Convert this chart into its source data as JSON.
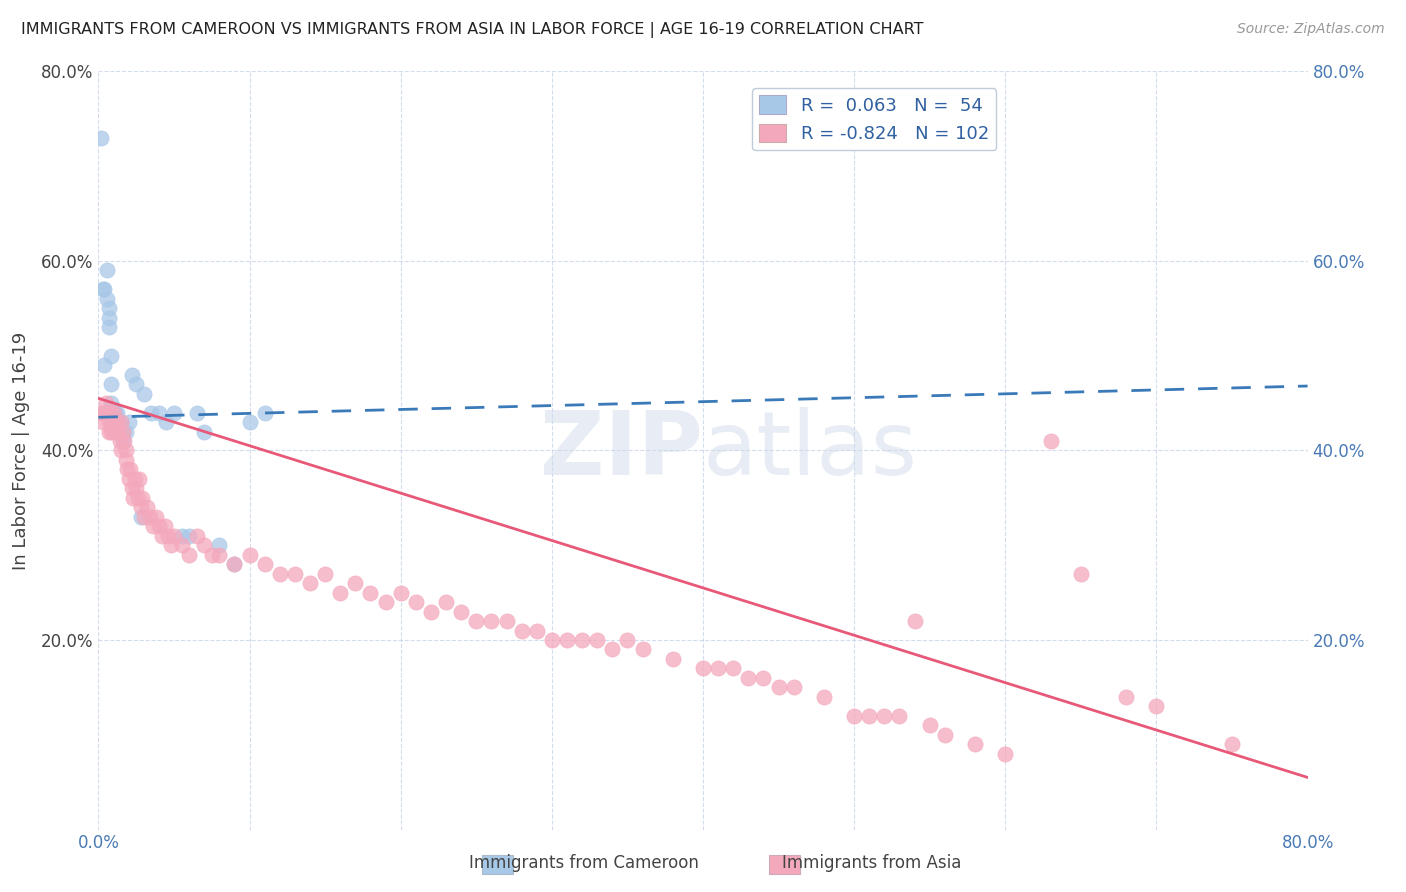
{
  "title": "IMMIGRANTS FROM CAMEROON VS IMMIGRANTS FROM ASIA IN LABOR FORCE | AGE 16-19 CORRELATION CHART",
  "source": "Source: ZipAtlas.com",
  "ylabel": "In Labor Force | Age 16-19",
  "xlim": [
    0.0,
    0.8
  ],
  "ylim": [
    0.0,
    0.8
  ],
  "cameroon_R": 0.063,
  "cameroon_N": 54,
  "asia_R": -0.824,
  "asia_N": 102,
  "cameroon_color": "#a8c8e8",
  "asia_color": "#f4a8bc",
  "cameroon_line_color": "#3a7ab8",
  "asia_line_color": "#e85878",
  "watermark": "ZIPatlas",
  "cam_line_start_y": 0.435,
  "cam_line_end_y": 0.468,
  "asia_line_start_y": 0.455,
  "asia_line_end_y": 0.055,
  "cam_scatter_x": [
    0.002,
    0.003,
    0.004,
    0.004,
    0.005,
    0.005,
    0.005,
    0.006,
    0.006,
    0.007,
    0.007,
    0.007,
    0.008,
    0.008,
    0.008,
    0.008,
    0.009,
    0.009,
    0.009,
    0.01,
    0.01,
    0.01,
    0.01,
    0.011,
    0.011,
    0.011,
    0.012,
    0.012,
    0.013,
    0.013,
    0.014,
    0.014,
    0.015,
    0.015,
    0.016,
    0.016,
    0.018,
    0.02,
    0.022,
    0.025,
    0.028,
    0.03,
    0.035,
    0.04,
    0.045,
    0.05,
    0.055,
    0.06,
    0.065,
    0.07,
    0.08,
    0.09,
    0.1,
    0.11
  ],
  "cam_scatter_y": [
    0.73,
    0.57,
    0.57,
    0.49,
    0.44,
    0.44,
    0.44,
    0.59,
    0.56,
    0.55,
    0.54,
    0.53,
    0.5,
    0.47,
    0.45,
    0.44,
    0.44,
    0.44,
    0.43,
    0.44,
    0.44,
    0.43,
    0.43,
    0.44,
    0.43,
    0.42,
    0.44,
    0.43,
    0.43,
    0.42,
    0.43,
    0.42,
    0.43,
    0.42,
    0.42,
    0.41,
    0.42,
    0.43,
    0.48,
    0.47,
    0.33,
    0.46,
    0.44,
    0.44,
    0.43,
    0.44,
    0.31,
    0.31,
    0.44,
    0.42,
    0.3,
    0.28,
    0.43,
    0.44
  ],
  "asia_scatter_x": [
    0.002,
    0.003,
    0.004,
    0.005,
    0.006,
    0.007,
    0.007,
    0.008,
    0.008,
    0.009,
    0.01,
    0.01,
    0.011,
    0.012,
    0.012,
    0.013,
    0.014,
    0.015,
    0.015,
    0.016,
    0.017,
    0.018,
    0.018,
    0.019,
    0.02,
    0.021,
    0.022,
    0.023,
    0.024,
    0.025,
    0.026,
    0.027,
    0.028,
    0.029,
    0.03,
    0.032,
    0.034,
    0.036,
    0.038,
    0.04,
    0.042,
    0.044,
    0.046,
    0.048,
    0.05,
    0.055,
    0.06,
    0.065,
    0.07,
    0.075,
    0.08,
    0.09,
    0.1,
    0.11,
    0.12,
    0.13,
    0.14,
    0.15,
    0.16,
    0.17,
    0.18,
    0.19,
    0.2,
    0.21,
    0.22,
    0.23,
    0.24,
    0.25,
    0.26,
    0.27,
    0.28,
    0.29,
    0.3,
    0.31,
    0.32,
    0.33,
    0.34,
    0.35,
    0.36,
    0.38,
    0.4,
    0.41,
    0.42,
    0.43,
    0.44,
    0.45,
    0.46,
    0.48,
    0.5,
    0.51,
    0.52,
    0.53,
    0.54,
    0.55,
    0.56,
    0.58,
    0.6,
    0.63,
    0.65,
    0.68,
    0.7,
    0.75
  ],
  "asia_scatter_y": [
    0.44,
    0.43,
    0.44,
    0.45,
    0.44,
    0.43,
    0.42,
    0.44,
    0.42,
    0.43,
    0.44,
    0.42,
    0.43,
    0.42,
    0.43,
    0.42,
    0.41,
    0.43,
    0.4,
    0.42,
    0.41,
    0.4,
    0.39,
    0.38,
    0.37,
    0.38,
    0.36,
    0.35,
    0.37,
    0.36,
    0.35,
    0.37,
    0.34,
    0.35,
    0.33,
    0.34,
    0.33,
    0.32,
    0.33,
    0.32,
    0.31,
    0.32,
    0.31,
    0.3,
    0.31,
    0.3,
    0.29,
    0.31,
    0.3,
    0.29,
    0.29,
    0.28,
    0.29,
    0.28,
    0.27,
    0.27,
    0.26,
    0.27,
    0.25,
    0.26,
    0.25,
    0.24,
    0.25,
    0.24,
    0.23,
    0.24,
    0.23,
    0.22,
    0.22,
    0.22,
    0.21,
    0.21,
    0.2,
    0.2,
    0.2,
    0.2,
    0.19,
    0.2,
    0.19,
    0.18,
    0.17,
    0.17,
    0.17,
    0.16,
    0.16,
    0.15,
    0.15,
    0.14,
    0.12,
    0.12,
    0.12,
    0.12,
    0.22,
    0.11,
    0.1,
    0.09,
    0.08,
    0.41,
    0.27,
    0.14,
    0.13,
    0.09
  ]
}
